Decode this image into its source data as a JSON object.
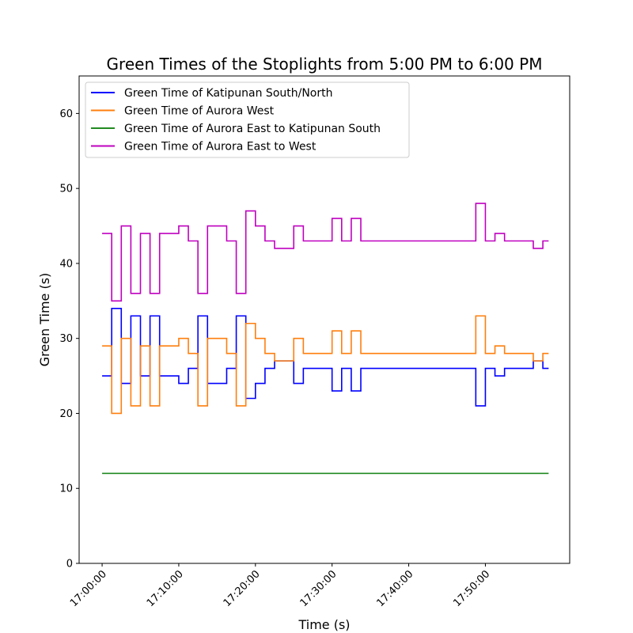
{
  "chart_data": {
    "type": "line",
    "step": true,
    "title": "Green Times of the Stoplights from 5:00 PM to 6:00 PM",
    "xlabel": "Time (s)",
    "ylabel": "Green Time (s)",
    "xlim": [
      "16:57:00",
      "18:01:00"
    ],
    "ylim": [
      0,
      65
    ],
    "xticks": [
      "17:00:00",
      "17:10:00",
      "17:20:00",
      "17:30:00",
      "17:40:00",
      "17:50:00"
    ],
    "yticks": [
      0,
      10,
      20,
      30,
      40,
      50,
      60
    ],
    "grid": false,
    "legend_position": "top-left",
    "series": [
      {
        "name": "Green Time of Katipunan South/North",
        "color": "#0000ff",
        "points": [
          [
            "17:00:00",
            25
          ],
          [
            "17:01:15",
            34
          ],
          [
            "17:02:30",
            24
          ],
          [
            "17:03:45",
            33
          ],
          [
            "17:05:00",
            25
          ],
          [
            "17:06:15",
            33
          ],
          [
            "17:07:30",
            25
          ],
          [
            "17:10:00",
            24
          ],
          [
            "17:11:15",
            26
          ],
          [
            "17:12:30",
            33
          ],
          [
            "17:13:45",
            24
          ],
          [
            "17:16:15",
            26
          ],
          [
            "17:17:30",
            33
          ],
          [
            "17:18:45",
            22
          ],
          [
            "17:20:00",
            24
          ],
          [
            "17:21:15",
            26
          ],
          [
            "17:22:30",
            27
          ],
          [
            "17:25:00",
            24
          ],
          [
            "17:26:15",
            26
          ],
          [
            "17:30:00",
            23
          ],
          [
            "17:31:15",
            26
          ],
          [
            "17:32:30",
            23
          ],
          [
            "17:33:45",
            26
          ],
          [
            "17:48:45",
            21
          ],
          [
            "17:50:00",
            26
          ],
          [
            "17:51:15",
            25
          ],
          [
            "17:52:30",
            26
          ],
          [
            "17:56:15",
            27
          ],
          [
            "17:57:30",
            26
          ],
          [
            "17:58:15",
            26
          ]
        ]
      },
      {
        "name": "Green Time of Aurora West",
        "color": "#ff7f0e",
        "points": [
          [
            "17:00:00",
            29
          ],
          [
            "17:01:15",
            20
          ],
          [
            "17:02:30",
            30
          ],
          [
            "17:03:45",
            21
          ],
          [
            "17:05:00",
            29
          ],
          [
            "17:06:15",
            21
          ],
          [
            "17:07:30",
            29
          ],
          [
            "17:10:00",
            30
          ],
          [
            "17:11:15",
            28
          ],
          [
            "17:12:30",
            21
          ],
          [
            "17:13:45",
            30
          ],
          [
            "17:16:15",
            28
          ],
          [
            "17:17:30",
            21
          ],
          [
            "17:18:45",
            32
          ],
          [
            "17:20:00",
            30
          ],
          [
            "17:21:15",
            28
          ],
          [
            "17:22:30",
            27
          ],
          [
            "17:25:00",
            30
          ],
          [
            "17:26:15",
            28
          ],
          [
            "17:30:00",
            31
          ],
          [
            "17:31:15",
            28
          ],
          [
            "17:32:30",
            31
          ],
          [
            "17:33:45",
            28
          ],
          [
            "17:48:45",
            33
          ],
          [
            "17:50:00",
            28
          ],
          [
            "17:51:15",
            29
          ],
          [
            "17:52:30",
            28
          ],
          [
            "17:56:15",
            27
          ],
          [
            "17:57:30",
            28
          ],
          [
            "17:58:15",
            28
          ]
        ]
      },
      {
        "name": "Green Time of Aurora East to Katipunan South",
        "color": "#228b22",
        "points": [
          [
            "17:00:00",
            12
          ],
          [
            "17:58:15",
            12
          ]
        ]
      },
      {
        "name": "Green Time of Aurora East to West",
        "color": "#bf00bf",
        "points": [
          [
            "17:00:00",
            44
          ],
          [
            "17:01:15",
            35
          ],
          [
            "17:02:30",
            45
          ],
          [
            "17:03:45",
            36
          ],
          [
            "17:05:00",
            44
          ],
          [
            "17:06:15",
            36
          ],
          [
            "17:07:30",
            44
          ],
          [
            "17:10:00",
            45
          ],
          [
            "17:11:15",
            43
          ],
          [
            "17:12:30",
            36
          ],
          [
            "17:13:45",
            45
          ],
          [
            "17:16:15",
            43
          ],
          [
            "17:17:30",
            36
          ],
          [
            "17:18:45",
            47
          ],
          [
            "17:20:00",
            45
          ],
          [
            "17:21:15",
            43
          ],
          [
            "17:22:30",
            42
          ],
          [
            "17:25:00",
            45
          ],
          [
            "17:26:15",
            43
          ],
          [
            "17:30:00",
            46
          ],
          [
            "17:31:15",
            43
          ],
          [
            "17:32:30",
            46
          ],
          [
            "17:33:45",
            43
          ],
          [
            "17:48:45",
            48
          ],
          [
            "17:50:00",
            43
          ],
          [
            "17:51:15",
            44
          ],
          [
            "17:52:30",
            43
          ],
          [
            "17:56:15",
            42
          ],
          [
            "17:57:30",
            43
          ],
          [
            "17:58:15",
            43
          ]
        ]
      }
    ]
  }
}
